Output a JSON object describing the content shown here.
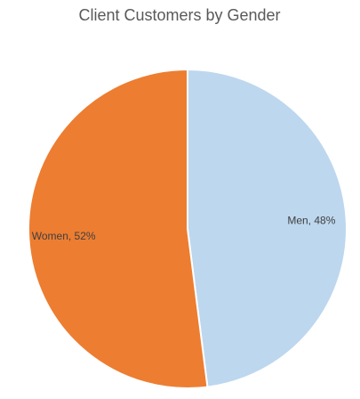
{
  "chart_data": {
    "type": "pie",
    "title": "Client Customers by Gender",
    "categories": [
      "Men",
      "Women"
    ],
    "values": [
      48,
      52
    ],
    "value_labels": [
      "Men, 48%",
      "Women, 52%"
    ],
    "colors": [
      "#bdd7ee",
      "#ed7d31"
    ]
  }
}
